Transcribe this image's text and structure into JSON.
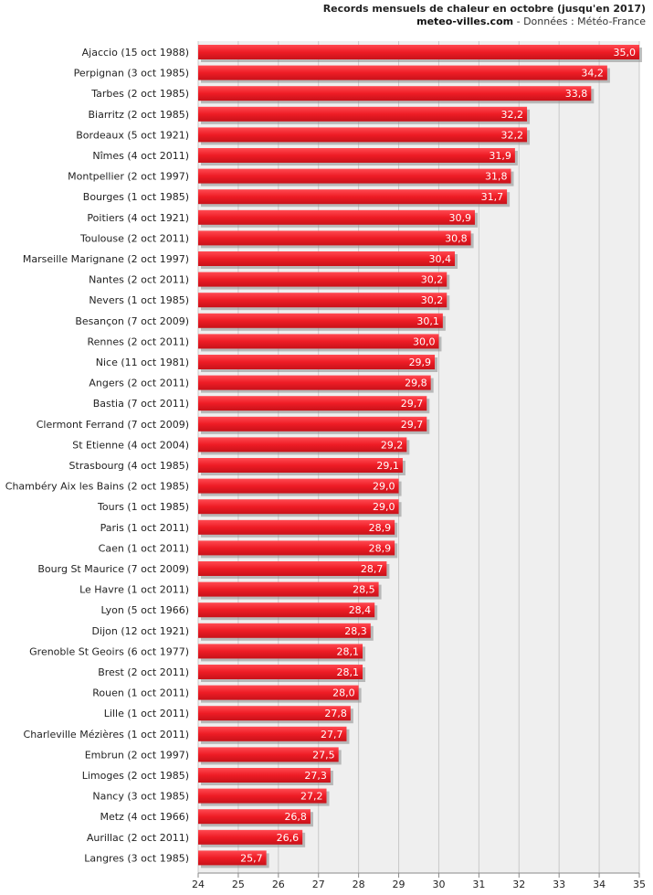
{
  "header": {
    "title": "Records mensuels de chaleur en octobre (jusqu'en 2017)",
    "site": "meteo-villes.com",
    "source": " - Données : Météo-France"
  },
  "chart_data": {
    "type": "bar",
    "orientation": "horizontal",
    "title": "Records mensuels de chaleur en octobre (jusqu'en 2017)",
    "xlim": [
      24,
      35
    ],
    "ticks": [
      "24",
      "25",
      "26",
      "27",
      "28",
      "29",
      "30",
      "31",
      "32",
      "33",
      "34",
      "35"
    ],
    "grid": true,
    "bar_color": "#ee1c25",
    "categories": [
      "Ajaccio (15 oct 1988)",
      "Perpignan (3 oct 1985)",
      "Tarbes (2 oct 1985)",
      "Biarritz (2 oct 1985)",
      "Bordeaux (5 oct 1921)",
      "Nîmes (4 oct 2011)",
      "Montpellier (2 oct 1997)",
      "Bourges (1 oct 1985)",
      "Poitiers (4 oct 1921)",
      "Toulouse (2 oct 2011)",
      "Marseille Marignane (2 oct 1997)",
      "Nantes (2 oct 2011)",
      "Nevers (1 oct 1985)",
      "Besançon (7 oct 2009)",
      "Rennes (2 oct 2011)",
      "Nice (11 oct 1981)",
      "Angers (2 oct 2011)",
      "Bastia (7 oct 2011)",
      "Clermont Ferrand (7 oct 2009)",
      "St Etienne (4 oct 2004)",
      "Strasbourg (4 oct 1985)",
      "Chambéry Aix les Bains (2 oct 1985)",
      "Tours (1 oct 1985)",
      "Paris (1 oct 2011)",
      "Caen (1 oct 2011)",
      "Bourg St Maurice (7 oct 2009)",
      "Le Havre (1 oct 2011)",
      "Lyon (5 oct 1966)",
      "Dijon (12 oct 1921)",
      "Grenoble St Geoirs (6 oct 1977)",
      "Brest (2 oct 2011)",
      "Rouen (1 oct 2011)",
      "Lille (1 oct 2011)",
      "Charleville Mézières (1 oct 2011)",
      "Embrun (2 oct 1997)",
      "Limoges (2 oct 1985)",
      "Nancy (3 oct 1985)",
      "Metz (4 oct 1966)",
      "Aurillac (2 oct 2011)",
      "Langres (3 oct 1985)"
    ],
    "values": [
      35.0,
      34.2,
      33.8,
      32.2,
      32.2,
      31.9,
      31.8,
      31.7,
      30.9,
      30.8,
      30.4,
      30.2,
      30.2,
      30.1,
      30.0,
      29.9,
      29.8,
      29.7,
      29.7,
      29.2,
      29.1,
      29.0,
      29.0,
      28.9,
      28.9,
      28.7,
      28.5,
      28.4,
      28.3,
      28.1,
      28.1,
      28.0,
      27.8,
      27.7,
      27.5,
      27.3,
      27.2,
      26.8,
      26.6,
      25.7
    ],
    "value_labels": [
      "35,0",
      "34,2",
      "33,8",
      "32,2",
      "32,2",
      "31,9",
      "31,8",
      "31,7",
      "30,9",
      "30,8",
      "30,4",
      "30,2",
      "30,2",
      "30,1",
      "30,0",
      "29,9",
      "29,8",
      "29,7",
      "29,7",
      "29,2",
      "29,1",
      "29,0",
      "29,0",
      "28,9",
      "28,9",
      "28,7",
      "28,5",
      "28,4",
      "28,3",
      "28,1",
      "28,1",
      "28,0",
      "27,8",
      "27,7",
      "27,5",
      "27,3",
      "27,2",
      "26,8",
      "26,6",
      "25,7"
    ]
  }
}
